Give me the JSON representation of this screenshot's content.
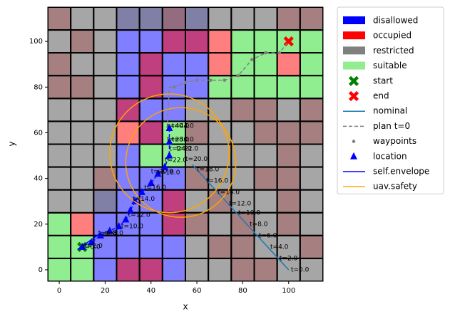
{
  "chart_data": {
    "type": "grid_map",
    "xlabel": "x",
    "ylabel": "y",
    "xlim": [
      -5,
      115
    ],
    "ylim": [
      -5,
      115
    ],
    "xticks": [
      0,
      20,
      40,
      60,
      80,
      100
    ],
    "yticks": [
      0,
      20,
      40,
      60,
      80,
      100
    ],
    "cell_size": 10,
    "legend": "outside upper right",
    "layers": [
      {
        "name": "disallowed",
        "color": "blue",
        "alpha": 0.5,
        "cells": [
          [
            30,
            110
          ],
          [
            40,
            110
          ],
          [
            50,
            110
          ],
          [
            60,
            110
          ],
          [
            30,
            100
          ],
          [
            40,
            100
          ],
          [
            50,
            100
          ],
          [
            60,
            100
          ],
          [
            30,
            90
          ],
          [
            40,
            90
          ],
          [
            50,
            90
          ],
          [
            60,
            90
          ],
          [
            30,
            80
          ],
          [
            40,
            80
          ],
          [
            50,
            80
          ],
          [
            60,
            80
          ],
          [
            30,
            70
          ],
          [
            40,
            70
          ],
          [
            50,
            70
          ],
          [
            40,
            60
          ],
          [
            30,
            50
          ],
          [
            30,
            40
          ],
          [
            40,
            40
          ],
          [
            50,
            40
          ],
          [
            20,
            30
          ],
          [
            30,
            30
          ],
          [
            40,
            30
          ],
          [
            50,
            30
          ],
          [
            20,
            20
          ],
          [
            30,
            20
          ],
          [
            40,
            20
          ],
          [
            50,
            20
          ],
          [
            20,
            10
          ],
          [
            30,
            10
          ],
          [
            40,
            10
          ],
          [
            50,
            10
          ],
          [
            20,
            0
          ],
          [
            30,
            0
          ],
          [
            40,
            0
          ],
          [
            50,
            0
          ]
        ]
      },
      {
        "name": "occupied",
        "color": "red",
        "alpha": 0.5,
        "cells": [
          [
            0,
            110
          ],
          [
            50,
            110
          ],
          [
            100,
            110
          ],
          [
            110,
            110
          ],
          [
            10,
            100
          ],
          [
            50,
            100
          ],
          [
            60,
            100
          ],
          [
            70,
            100
          ],
          [
            0,
            90
          ],
          [
            40,
            90
          ],
          [
            70,
            90
          ],
          [
            100,
            90
          ],
          [
            0,
            80
          ],
          [
            10,
            80
          ],
          [
            40,
            80
          ],
          [
            30,
            70
          ],
          [
            80,
            70
          ],
          [
            90,
            70
          ],
          [
            110,
            70
          ],
          [
            30,
            60
          ],
          [
            40,
            60
          ],
          [
            60,
            60
          ],
          [
            90,
            60
          ],
          [
            100,
            60
          ],
          [
            110,
            60
          ],
          [
            100,
            50
          ],
          [
            20,
            40
          ],
          [
            60,
            40
          ],
          [
            90,
            40
          ],
          [
            100,
            40
          ],
          [
            50,
            30
          ],
          [
            70,
            30
          ],
          [
            100,
            30
          ],
          [
            10,
            20
          ],
          [
            50,
            20
          ],
          [
            60,
            20
          ],
          [
            80,
            20
          ],
          [
            100,
            20
          ],
          [
            70,
            10
          ],
          [
            80,
            10
          ],
          [
            110,
            10
          ],
          [
            30,
            0
          ],
          [
            40,
            0
          ],
          [
            80,
            0
          ],
          [
            90,
            0
          ]
        ]
      },
      {
        "name": "restricted",
        "color": "gray",
        "alpha": 0.7,
        "cells": [
          [
            0,
            110
          ],
          [
            10,
            110
          ],
          [
            20,
            110
          ],
          [
            30,
            110
          ],
          [
            40,
            110
          ],
          [
            50,
            110
          ],
          [
            60,
            110
          ],
          [
            70,
            110
          ],
          [
            80,
            110
          ],
          [
            90,
            110
          ],
          [
            100,
            110
          ],
          [
            110,
            110
          ],
          [
            0,
            100
          ],
          [
            10,
            100
          ],
          [
            20,
            100
          ],
          [
            0,
            90
          ],
          [
            10,
            90
          ],
          [
            20,
            90
          ],
          [
            0,
            80
          ],
          [
            10,
            80
          ],
          [
            20,
            80
          ],
          [
            0,
            70
          ],
          [
            10,
            70
          ],
          [
            20,
            70
          ],
          [
            60,
            70
          ],
          [
            70,
            70
          ],
          [
            80,
            70
          ],
          [
            90,
            70
          ],
          [
            100,
            70
          ],
          [
            110,
            70
          ],
          [
            0,
            60
          ],
          [
            10,
            60
          ],
          [
            20,
            60
          ],
          [
            60,
            60
          ],
          [
            70,
            60
          ],
          [
            80,
            60
          ],
          [
            90,
            60
          ],
          [
            100,
            60
          ],
          [
            110,
            60
          ],
          [
            0,
            50
          ],
          [
            10,
            50
          ],
          [
            20,
            50
          ],
          [
            60,
            50
          ],
          [
            70,
            50
          ],
          [
            80,
            50
          ],
          [
            90,
            50
          ],
          [
            100,
            50
          ],
          [
            110,
            50
          ],
          [
            0,
            40
          ],
          [
            10,
            40
          ],
          [
            20,
            40
          ],
          [
            60,
            40
          ],
          [
            70,
            40
          ],
          [
            80,
            40
          ],
          [
            90,
            40
          ],
          [
            100,
            40
          ],
          [
            110,
            40
          ],
          [
            0,
            30
          ],
          [
            10,
            30
          ],
          [
            20,
            30
          ],
          [
            60,
            30
          ],
          [
            70,
            30
          ],
          [
            80,
            30
          ],
          [
            90,
            30
          ],
          [
            100,
            30
          ],
          [
            110,
            30
          ],
          [
            60,
            20
          ],
          [
            70,
            20
          ],
          [
            80,
            20
          ],
          [
            90,
            20
          ],
          [
            100,
            20
          ],
          [
            110,
            20
          ],
          [
            60,
            10
          ],
          [
            70,
            10
          ],
          [
            80,
            10
          ],
          [
            90,
            10
          ],
          [
            100,
            10
          ],
          [
            110,
            10
          ],
          [
            60,
            0
          ],
          [
            70,
            0
          ],
          [
            80,
            0
          ],
          [
            90,
            0
          ],
          [
            100,
            0
          ],
          [
            110,
            0
          ]
        ]
      },
      {
        "name": "suitable",
        "color": "lightgreen",
        "alpha": 1,
        "cells": [
          [
            80,
            100
          ],
          [
            90,
            100
          ],
          [
            100,
            100
          ],
          [
            110,
            100
          ],
          [
            80,
            90
          ],
          [
            90,
            90
          ],
          [
            110,
            90
          ],
          [
            70,
            80
          ],
          [
            80,
            80
          ],
          [
            90,
            80
          ],
          [
            100,
            80
          ],
          [
            110,
            80
          ],
          [
            50,
            60
          ],
          [
            40,
            50
          ],
          [
            50,
            50
          ],
          [
            0,
            20
          ],
          [
            0,
            10
          ],
          [
            10,
            10
          ],
          [
            0,
            0
          ],
          [
            10,
            0
          ]
        ]
      }
    ],
    "series": [
      {
        "name": "start",
        "color": "green",
        "marker": "X",
        "linestyle": "none",
        "x": [
          10
        ],
        "y": [
          10
        ]
      },
      {
        "name": "end",
        "color": "red",
        "marker": "X",
        "linestyle": "none",
        "x": [
          100
        ],
        "y": [
          100
        ]
      },
      {
        "name": "nominal",
        "color": "#1f77b4",
        "marker": "none",
        "linestyle": "solid",
        "x": [
          100,
          58
        ],
        "y": [
          0,
          46
        ]
      },
      {
        "name": "plan t=0",
        "color": "gray",
        "marker": "none",
        "linestyle": "dashed",
        "x": [
          47,
          48,
          50,
          55,
          60,
          66,
          72,
          78,
          84,
          90,
          96,
          100
        ],
        "y": [
          62,
          80,
          80,
          82,
          83,
          83,
          83,
          85,
          92,
          95,
          95,
          100
        ]
      },
      {
        "name": "waypoints",
        "color": "gray",
        "marker": "dot",
        "linestyle": "none",
        "x": [
          50,
          55,
          60,
          66,
          72,
          78,
          84,
          90,
          96
        ],
        "y": [
          80,
          82,
          83,
          83,
          83,
          85,
          92,
          95,
          95
        ]
      },
      {
        "name": "location",
        "color": "blue",
        "marker": "triangle",
        "linestyle": "dashed",
        "x": [
          10,
          14,
          18,
          22,
          26,
          29,
          31,
          33,
          36,
          40,
          43,
          46,
          48,
          48,
          48
        ],
        "y": [
          10,
          12,
          15,
          17,
          19,
          22,
          26,
          30,
          34,
          38,
          42,
          45,
          50,
          56,
          62
        ]
      },
      {
        "name": "self.envelope",
        "color": "blue",
        "marker": "none",
        "linestyle": "solid",
        "x": [
          8,
          18
        ],
        "y": [
          9,
          16
        ]
      },
      {
        "name": "uav.safety",
        "color": "orange",
        "marker": "none",
        "linestyle": "solid",
        "x": [
          48,
          53
        ],
        "y": [
          51,
          47
        ],
        "radius": [
          26,
          24
        ]
      }
    ],
    "annotations": [
      {
        "text": "t=0.0",
        "x": 101,
        "y": 0
      },
      {
        "text": "t=2.0",
        "x": 96,
        "y": 5
      },
      {
        "text": "t=4.0",
        "x": 92,
        "y": 10
      },
      {
        "text": "t=6.0",
        "x": 87,
        "y": 15
      },
      {
        "text": "t=8.0",
        "x": 83,
        "y": 20
      },
      {
        "text": "t=10.0",
        "x": 78,
        "y": 25
      },
      {
        "text": "t=12.0",
        "x": 74,
        "y": 29
      },
      {
        "text": "t=14.0",
        "x": 69,
        "y": 34
      },
      {
        "text": "t=16.0",
        "x": 64,
        "y": 39
      },
      {
        "text": "t=18.0",
        "x": 60,
        "y": 44
      },
      {
        "text": "t=20.0",
        "x": 55,
        "y": 48.5
      },
      {
        "text": "t=22.0",
        "x": 51,
        "y": 53
      },
      {
        "text": "t=0.0",
        "x": 10,
        "y": 10
      },
      {
        "text": "t=2.0",
        "x": 11,
        "y": 10.5
      },
      {
        "text": "t=6.0",
        "x": 17,
        "y": 16
      },
      {
        "text": "t=8.0",
        "x": 20,
        "y": 16
      },
      {
        "text": "t=10.0",
        "x": 27,
        "y": 19
      },
      {
        "text": "t=12.0",
        "x": 30,
        "y": 24
      },
      {
        "text": "t=14.0",
        "x": 32,
        "y": 31
      },
      {
        "text": "t=16.0",
        "x": 37,
        "y": 36
      },
      {
        "text": "t=18.0",
        "x": 43,
        "y": 42.5
      },
      {
        "text": "t=20.0",
        "x": 40,
        "y": 43
      },
      {
        "text": "t=22.0",
        "x": 46,
        "y": 48
      },
      {
        "text": "t=24.0",
        "x": 48,
        "y": 53
      },
      {
        "text": "t=28.0",
        "x": 47,
        "y": 57
      },
      {
        "text": "t=30.0",
        "x": 49,
        "y": 57
      },
      {
        "text": "t=40.0",
        "x": 47,
        "y": 63
      },
      {
        "text": "t=44.0",
        "x": 49,
        "y": 63
      }
    ]
  }
}
